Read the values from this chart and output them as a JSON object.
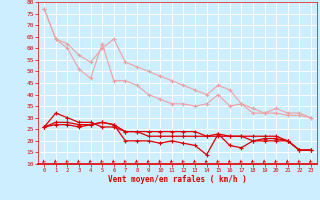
{
  "xlabel": "Vent moyen/en rafales ( km/h )",
  "bg_color": "#cceeff",
  "grid_color": "#ffffff",
  "x": [
    0,
    1,
    2,
    3,
    4,
    5,
    6,
    7,
    8,
    9,
    10,
    11,
    12,
    13,
    14,
    15,
    16,
    17,
    18,
    19,
    20,
    21,
    22,
    23
  ],
  "ylim": [
    10,
    80
  ],
  "yticks": [
    10,
    15,
    20,
    25,
    30,
    35,
    40,
    45,
    50,
    55,
    60,
    65,
    70,
    75,
    80
  ],
  "lines_light": [
    [
      77,
      64,
      60,
      51,
      47,
      62,
      46,
      46,
      44,
      40,
      38,
      36,
      36,
      35,
      36,
      40,
      35,
      36,
      32,
      32,
      32,
      31,
      31,
      30
    ],
    [
      77,
      64,
      62,
      57,
      54,
      60,
      64,
      54,
      52,
      50,
      48,
      46,
      44,
      42,
      40,
      44,
      42,
      36,
      34,
      32,
      34,
      32,
      32,
      30
    ]
  ],
  "lines_dark": [
    [
      26,
      27,
      27,
      26,
      27,
      28,
      27,
      20,
      20,
      20,
      19,
      20,
      19,
      18,
      14,
      23,
      18,
      17,
      20,
      20,
      20,
      20,
      16,
      16
    ],
    [
      26,
      28,
      28,
      27,
      27,
      28,
      27,
      24,
      24,
      24,
      24,
      24,
      24,
      24,
      22,
      23,
      22,
      22,
      20,
      21,
      21,
      20,
      16,
      16
    ],
    [
      26,
      32,
      30,
      28,
      28,
      26,
      26,
      24,
      24,
      22,
      22,
      22,
      22,
      22,
      22,
      22,
      22,
      22,
      22,
      22,
      22,
      20,
      16,
      16
    ]
  ],
  "light_color": "#f0a0a0",
  "dark_color": "#dd0000",
  "tick_color": "#dd0000",
  "label_color": "#dd0000"
}
